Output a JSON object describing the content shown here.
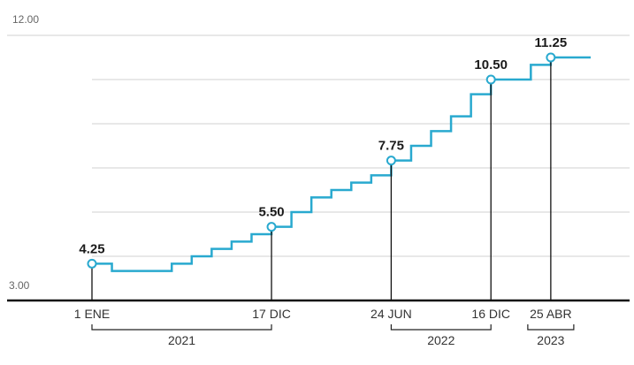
{
  "chart_data": {
    "type": "line",
    "step": true,
    "title": "",
    "xlabel": "",
    "ylabel": "",
    "ylim": [
      3.0,
      12.0
    ],
    "y_tick_labels": [
      "12.00",
      "3.00"
    ],
    "grid": true,
    "series": [
      {
        "name": "",
        "color": "#29a9cf",
        "values": [
          4.25,
          4.0,
          4.0,
          4.0,
          4.25,
          4.5,
          4.75,
          5.0,
          5.25,
          5.5,
          6.0,
          6.5,
          6.75,
          7.0,
          7.25,
          7.75,
          8.25,
          8.75,
          9.25,
          10.0,
          10.5,
          10.5,
          11.0,
          11.25,
          11.25
        ]
      }
    ],
    "x_labels": [
      "1 ENE",
      "17 DIC",
      "24 JUN",
      "16 DIC",
      "25 ABR"
    ],
    "callouts": [
      {
        "label": "4.25",
        "value": 4.25
      },
      {
        "label": "5.50",
        "value": 5.5
      },
      {
        "label": "7.75",
        "value": 7.75
      },
      {
        "label": "10.50",
        "value": 10.5
      },
      {
        "label": "11.25",
        "value": 11.25
      }
    ],
    "years": [
      "2021",
      "2022",
      "2023"
    ]
  }
}
